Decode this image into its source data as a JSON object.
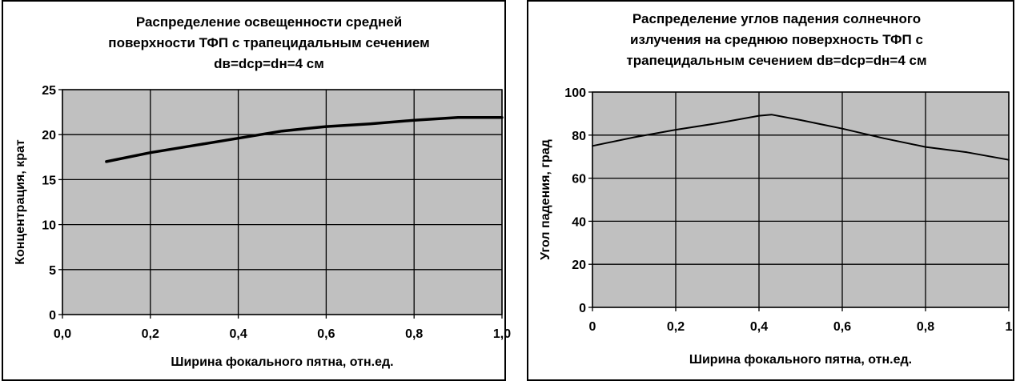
{
  "chart_data": [
    {
      "type": "line",
      "title_lines": [
        "Распределение освещенности средней",
        "поверхности ТФП с трапецидальным сечением",
        "dв=dср=dн=4 см"
      ],
      "xlabel": "Ширина фокального пятна, отн.ед.",
      "ylabel": "Концентрация, крат",
      "xlim": [
        0,
        1
      ],
      "ylim": [
        0,
        25
      ],
      "x_ticks": [
        "0,0",
        "0,2",
        "0,4",
        "0,6",
        "0,8",
        "1,0"
      ],
      "y_ticks": [
        "0",
        "5",
        "10",
        "15",
        "20",
        "25"
      ],
      "grid": true,
      "legend": "none",
      "plot_bg": "#c0c0c0",
      "line_color": "#000000",
      "series": [
        {
          "x": [
            0.1,
            0.2,
            0.3,
            0.4,
            0.5,
            0.6,
            0.7,
            0.8,
            0.9,
            1.0
          ],
          "values": [
            17.0,
            18.0,
            18.8,
            19.6,
            20.4,
            20.9,
            21.2,
            21.6,
            21.9,
            21.9
          ]
        }
      ]
    },
    {
      "type": "line",
      "title_lines": [
        "Распределение углов падения солнечного",
        "излучения на среднюю поверхность ТФП с",
        "трапецидальным сечением dв=dср=dн=4 см"
      ],
      "xlabel": "Ширина фокального пятна, отн.ед.",
      "ylabel": "Угол падения, град",
      "xlim": [
        0,
        1
      ],
      "ylim": [
        0,
        100
      ],
      "x_ticks": [
        "0",
        "0,2",
        "0,4",
        "0,6",
        "0,8",
        "1"
      ],
      "y_ticks": [
        "0",
        "20",
        "40",
        "60",
        "80",
        "100"
      ],
      "grid": true,
      "legend": "none",
      "plot_bg": "#c0c0c0",
      "line_color": "#000000",
      "series": [
        {
          "x": [
            0.0,
            0.1,
            0.2,
            0.3,
            0.4,
            0.43,
            0.5,
            0.6,
            0.7,
            0.8,
            0.9,
            1.0
          ],
          "values": [
            75,
            79,
            82.5,
            85.5,
            89,
            89.5,
            87,
            83,
            78.5,
            74.5,
            72,
            68.5
          ]
        }
      ]
    }
  ]
}
